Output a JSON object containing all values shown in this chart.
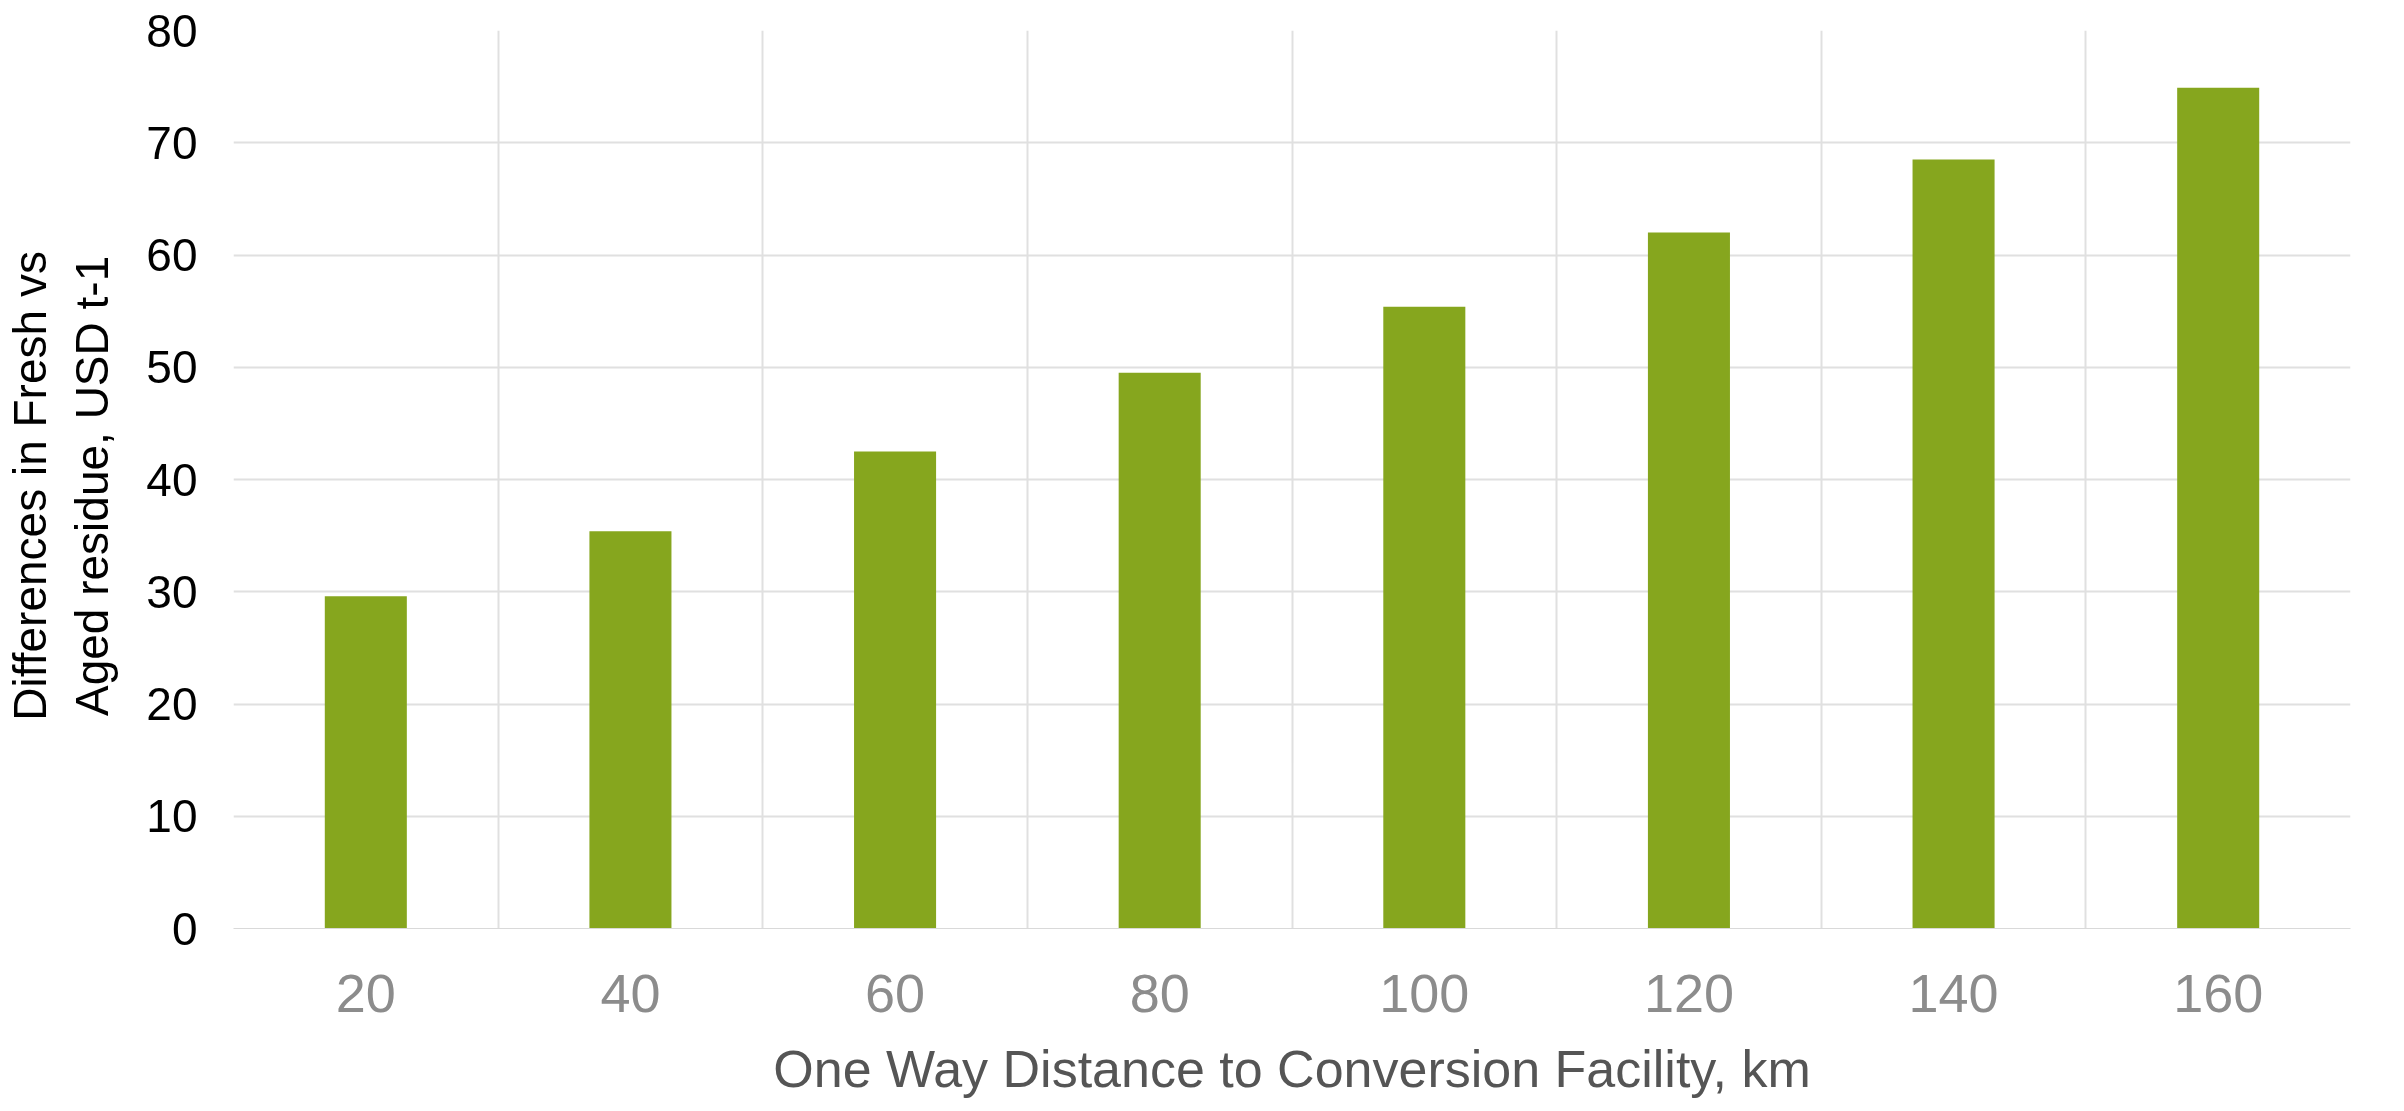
{
  "chart_data": {
    "type": "bar",
    "xlabel": "One Way Distance to Conversion Facility, km",
    "ylabel": "Differences in Fresh  vs Aged residue, USD  t-1",
    "categories": [
      "20",
      "40",
      "60",
      "80",
      "100",
      "120",
      "140",
      "160"
    ],
    "values": [
      29.6,
      35.4,
      42.5,
      49.5,
      55.4,
      62.0,
      68.5,
      74.9
    ],
    "color": "#86a61e",
    "ylim": [
      0,
      80
    ],
    "yticks": [
      0,
      10,
      20,
      30,
      40,
      50,
      60,
      70,
      80
    ],
    "grid": true
  }
}
